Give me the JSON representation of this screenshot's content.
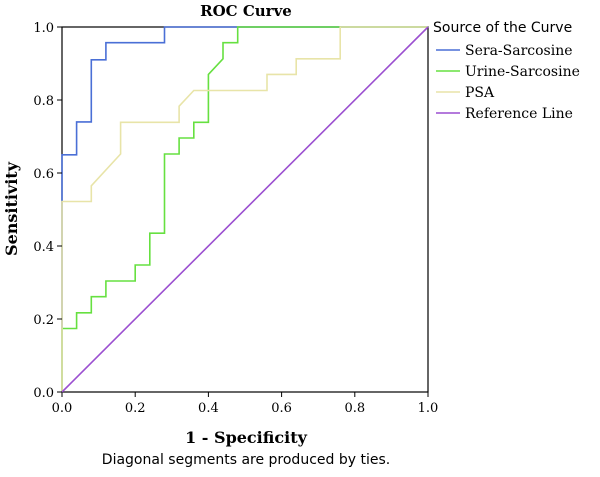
{
  "chart_data": {
    "type": "line",
    "title": "ROC Curve",
    "xlabel": "1 - Specificity",
    "ylabel": "Sensitivity",
    "footnote": "Diagonal segments are produced by ties.",
    "xlim": [
      0,
      1
    ],
    "ylim": [
      0,
      1
    ],
    "x_ticks": [
      "0.0",
      "0.2",
      "0.4",
      "0.6",
      "0.8",
      "1.0"
    ],
    "y_ticks": [
      "0.0",
      "0.2",
      "0.4",
      "0.6",
      "0.8",
      "1.0"
    ],
    "grid": false,
    "legend": {
      "title": "Source of the Curve",
      "position": "right"
    },
    "series": [
      {
        "name": "Sera-Sarcosine",
        "color": "#4a6fd6",
        "points": [
          [
            0,
            0
          ],
          [
            0,
            0.65
          ],
          [
            0.04,
            0.65
          ],
          [
            0.04,
            0.74
          ],
          [
            0.08,
            0.74
          ],
          [
            0.08,
            0.91
          ],
          [
            0.12,
            0.91
          ],
          [
            0.12,
            0.957
          ],
          [
            0.28,
            0.957
          ],
          [
            0.28,
            1
          ],
          [
            1,
            1
          ]
        ]
      },
      {
        "name": "Urine-Sarcosine",
        "color": "#66e040",
        "points": [
          [
            0,
            0
          ],
          [
            0,
            0.174
          ],
          [
            0.04,
            0.174
          ],
          [
            0.04,
            0.217
          ],
          [
            0.08,
            0.217
          ],
          [
            0.08,
            0.261
          ],
          [
            0.12,
            0.261
          ],
          [
            0.12,
            0.304
          ],
          [
            0.2,
            0.304
          ],
          [
            0.2,
            0.348
          ],
          [
            0.24,
            0.348
          ],
          [
            0.24,
            0.435
          ],
          [
            0.28,
            0.435
          ],
          [
            0.28,
            0.652
          ],
          [
            0.32,
            0.652
          ],
          [
            0.32,
            0.696
          ],
          [
            0.36,
            0.696
          ],
          [
            0.36,
            0.739
          ],
          [
            0.4,
            0.739
          ],
          [
            0.4,
            0.87
          ],
          [
            0.44,
            0.913
          ],
          [
            0.44,
            0.957
          ],
          [
            0.48,
            0.957
          ],
          [
            0.48,
            1
          ],
          [
            1,
            1
          ]
        ]
      },
      {
        "name": "PSA",
        "color": "#e8e4a8",
        "points": [
          [
            0,
            0
          ],
          [
            0,
            0.522
          ],
          [
            0.08,
            0.522
          ],
          [
            0.08,
            0.565
          ],
          [
            0.16,
            0.652
          ],
          [
            0.16,
            0.739
          ],
          [
            0.32,
            0.739
          ],
          [
            0.32,
            0.783
          ],
          [
            0.36,
            0.826
          ],
          [
            0.56,
            0.826
          ],
          [
            0.56,
            0.87
          ],
          [
            0.64,
            0.87
          ],
          [
            0.64,
            0.913
          ],
          [
            0.76,
            0.913
          ],
          [
            0.76,
            1
          ],
          [
            1,
            1
          ]
        ]
      },
      {
        "name": "Reference Line",
        "color": "#9b4fd0",
        "points": [
          [
            0,
            0
          ],
          [
            1,
            1
          ]
        ]
      }
    ]
  }
}
